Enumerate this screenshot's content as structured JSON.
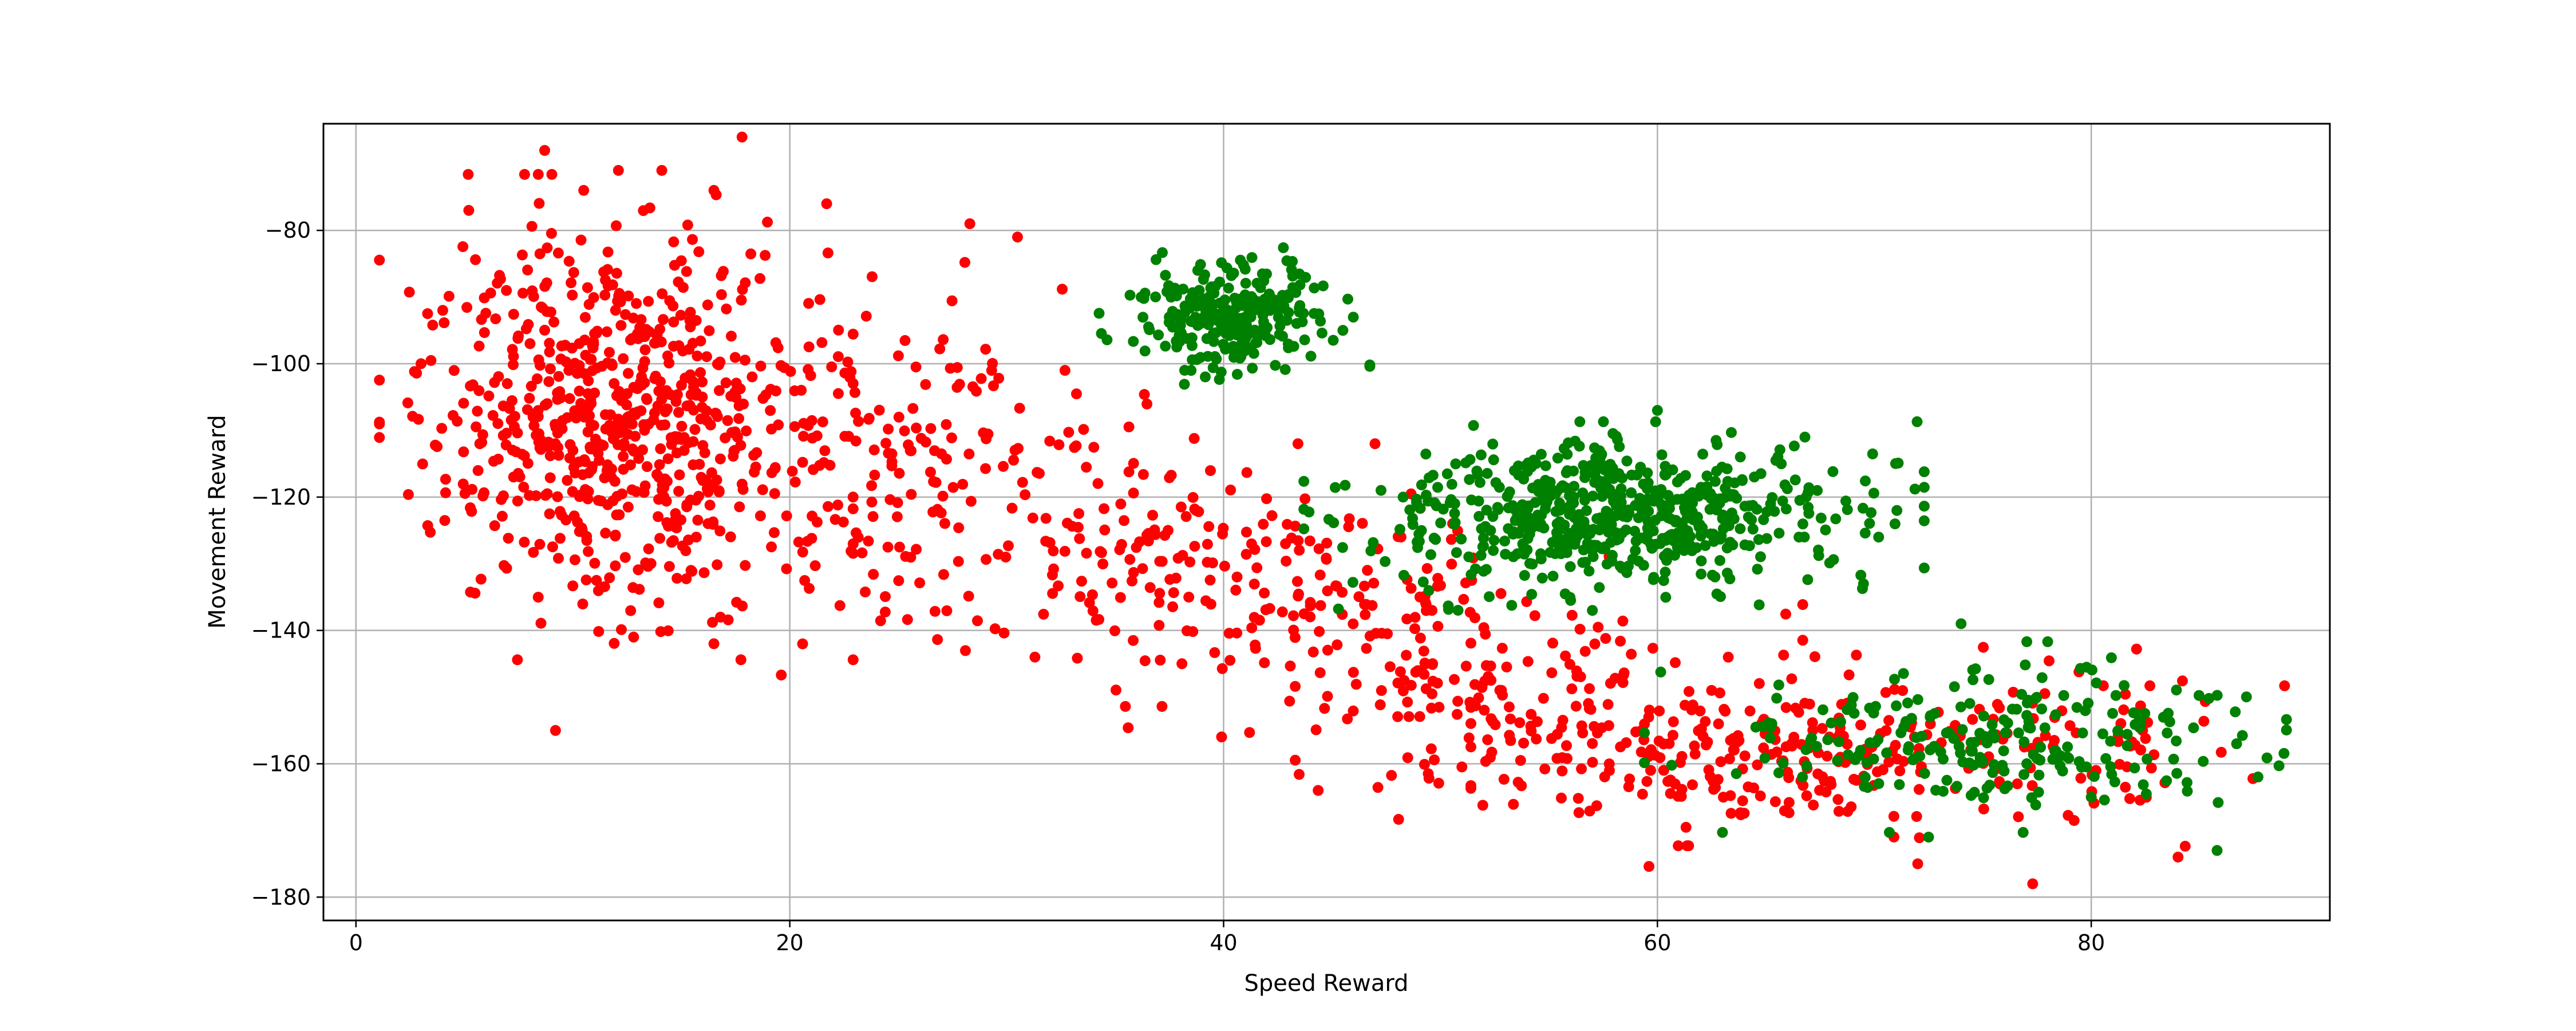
{
  "chart_data": {
    "type": "scatter",
    "title": "",
    "xlabel": "Speed Reward",
    "ylabel": "Movement Reward",
    "xlim": [
      -1.5,
      91
    ],
    "ylim": [
      -183.5,
      -64
    ],
    "xticks": [
      0,
      20,
      40,
      60,
      80
    ],
    "yticks": [
      -80,
      -100,
      -120,
      -140,
      -160,
      -180
    ],
    "xtick_labels": [
      "0",
      "20",
      "40",
      "60",
      "80"
    ],
    "ytick_labels": [
      "−80",
      "−100",
      "−120",
      "−140",
      "−160",
      "−180"
    ],
    "grid": true,
    "series": [
      {
        "color": "#ff0000",
        "clusters": [
          {
            "cx": 12,
            "cy": -108,
            "sx": 4.2,
            "sy": 14,
            "n": 650
          },
          {
            "cx": 24,
            "cy": -116,
            "sx": 5,
            "sy": 12,
            "n": 180
          },
          {
            "cx": 36,
            "cy": -128,
            "sx": 4,
            "sy": 9,
            "n": 140
          },
          {
            "cx": 46,
            "cy": -138,
            "sx": 4,
            "sy": 10,
            "n": 130
          },
          {
            "cx": 55,
            "cy": -152,
            "sx": 4.5,
            "sy": 9,
            "n": 140
          },
          {
            "cx": 67,
            "cy": -158,
            "sx": 6,
            "sy": 5.5,
            "n": 230
          },
          {
            "cx": 80,
            "cy": -157,
            "sx": 3.5,
            "sy": 7,
            "n": 60
          }
        ],
        "points": [
          [
            3,
            -100
          ],
          [
            8.7,
            -68
          ],
          [
            17.8,
            -66
          ],
          [
            9.2,
            -155
          ],
          [
            4,
            -92
          ],
          [
            5.2,
            -77
          ],
          [
            30.5,
            -81
          ],
          [
            28.3,
            -79
          ],
          [
            21.7,
            -76
          ],
          [
            77.3,
            -178
          ],
          [
            72,
            -175
          ],
          [
            84,
            -174
          ],
          [
            16.5,
            -142
          ],
          [
            31.3,
            -144
          ],
          [
            12.8,
            -141
          ],
          [
            10.5,
            -74
          ],
          [
            14.1,
            -71
          ],
          [
            12.1,
            -71
          ],
          [
            16.5,
            -74
          ]
        ]
      },
      {
        "color": "#008000",
        "clusters": [
          {
            "cx": 40.5,
            "cy": -93,
            "sx": 2.4,
            "sy": 4,
            "n": 260
          },
          {
            "cx": 58,
            "cy": -123,
            "sx": 5.5,
            "sy": 5.5,
            "n": 600
          },
          {
            "cx": 75,
            "cy": -156,
            "sx": 6,
            "sy": 5.5,
            "n": 230
          }
        ],
        "points": [
          [
            86.7,
            -157
          ],
          [
            85.8,
            -173
          ],
          [
            36.2,
            -90
          ],
          [
            45.5,
            -95
          ],
          [
            38.5,
            -101
          ],
          [
            60,
            -107
          ],
          [
            66.8,
            -111
          ],
          [
            70.2,
            -126
          ],
          [
            74,
            -139
          ],
          [
            57,
            -137
          ],
          [
            69.5,
            -133
          ],
          [
            72.5,
            -171
          ],
          [
            80,
            -165
          ]
        ]
      }
    ]
  }
}
